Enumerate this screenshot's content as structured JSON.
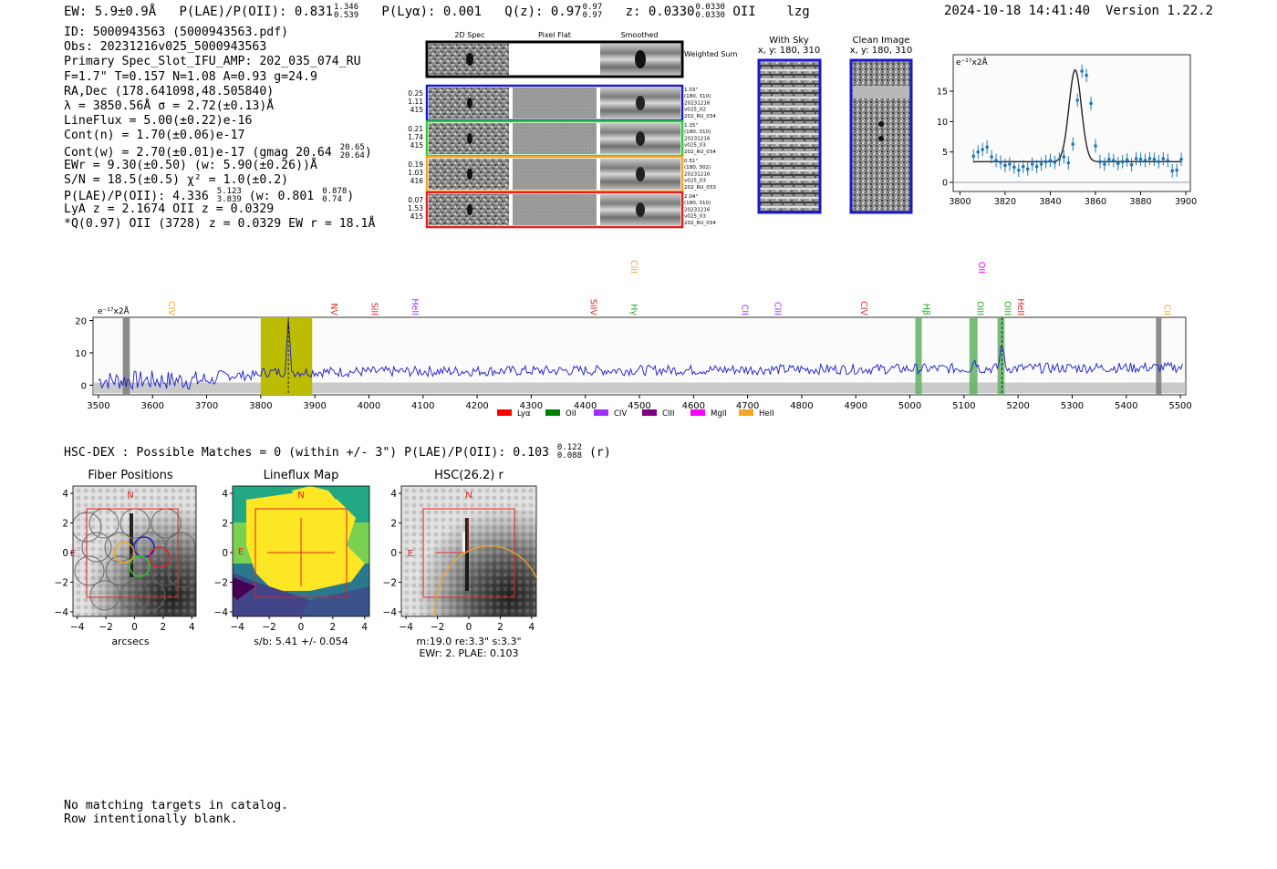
{
  "header": {
    "ew_label": "EW: 5.9±0.9Å",
    "ew_hi": "",
    "plae_label": "P(LAE)/P(OII): 0.831",
    "plae_hi": "1.346",
    "plae_lo": "0.539",
    "plya_label": "P(Lyα): 0.001",
    "qz_label": "Q(z): 0.97",
    "qz_hi": "0.97",
    "qz_lo": "0.97",
    "z_label": "z: 0.0330",
    "z_hi": "0.0330",
    "z_lo": "0.0330",
    "z_line": "OII",
    "tag": "lzg",
    "timestamp": "2024-10-18 14:41:40",
    "version": "Version 1.22.2"
  },
  "info": {
    "id": "ID: 5000943563 (5000943563.pdf)",
    "obs": "Obs: 20231216v025_5000943563",
    "primary": "Primary Spec_Slot_IFU_AMP: 202_035_074_RU",
    "fit": "F=1.7\"  T=0.157  N=1.08  A=0.93  g=24.9",
    "radec": "RA,Dec (178.641098,48.505840)",
    "lambda": "λ = 3850.56Å  σ = 2.72(±0.13)Å",
    "lineflux": "LineFlux = 5.00(±0.22)e-16",
    "contn": "Cont(n) = 1.70(±0.06)e-17",
    "contw_prefix": "Cont(w) = 2.70(±0.01)e-17 (gmag 20.64",
    "contw_hi": "20.65",
    "contw_lo": "20.64",
    "contw_suffix": ")",
    "ewr": "EWr = 9.30(±0.50) (w: 5.90(±0.26))Å",
    "sn": "S/N = 18.5(±0.5)  χ² = 1.0(±0.2)",
    "plae_prefix": "P(LAE)/P(OII): 4.336",
    "plae_hi": "5.123",
    "plae_lo": "3.839",
    "plae_mid": " (w: 0.801",
    "plae_w_hi": "0.878",
    "plae_w_lo": "0.74",
    "plae_suffix": ")",
    "lya": "LyA z = 2.1674  OII z = 0.0329",
    "q": "*Q(0.97) OII (3728) z = 0.0329  EW r = 18.1Å"
  },
  "cutouts": {
    "headers": [
      "2D Spec",
      "Pixel Flat",
      "Smoothed"
    ],
    "weighted_sum": "Weighted Sum",
    "rows": [
      {
        "vals": [
          "0.25",
          "1.11",
          "415"
        ],
        "meta": [
          "1.03\"",
          "(180, 310)",
          "20231216",
          "v025_02",
          "202_RU_034"
        ],
        "color": "#1a1acc"
      },
      {
        "vals": [
          "0.21",
          "1.74",
          "415"
        ],
        "meta": [
          "1.15\"",
          "(180, 310)",
          "20231216",
          "v025_03",
          "202_RU_034"
        ],
        "color": "#2ecc2e"
      },
      {
        "vals": [
          "0.19",
          "1.03",
          "416"
        ],
        "meta": [
          "0.51\"",
          "(180, 302)",
          "20231216",
          "v025_03",
          "202_RU_033"
        ],
        "color": "#f5a623"
      },
      {
        "vals": [
          "0.07",
          "1.53",
          "415"
        ],
        "meta": [
          "2.04\"",
          "(180, 310)",
          "20231216",
          "v025_03",
          "202_RU_034"
        ],
        "color": "#e52020"
      }
    ]
  },
  "sky_panels": {
    "with_sky": "With Sky",
    "clean": "Clean Image",
    "xy": "x, y: 180, 310"
  },
  "zoom_chart": {
    "type": "line",
    "yunit": "e⁻¹⁷x2Å",
    "x_ticks": [
      3800,
      3820,
      3840,
      3860,
      3880,
      3900
    ],
    "y_ticks": [
      0,
      5,
      10,
      15
    ],
    "xlim": [
      3797,
      3902
    ],
    "ylim": [
      -1.5,
      21
    ],
    "points_x": [
      3806,
      3808,
      3810,
      3812,
      3814,
      3816,
      3818,
      3820,
      3822,
      3824,
      3826,
      3828,
      3830,
      3832,
      3834,
      3836,
      3838,
      3840,
      3842,
      3844,
      3846,
      3848,
      3850,
      3852,
      3854,
      3856,
      3858,
      3860,
      3862,
      3864,
      3866,
      3868,
      3870,
      3872,
      3874,
      3876,
      3878,
      3880,
      3882,
      3884,
      3886,
      3888,
      3890,
      3892,
      3894,
      3896,
      3898
    ],
    "points_y": [
      4.3,
      5.0,
      5.4,
      5.8,
      4.2,
      3.6,
      3.3,
      2.8,
      3.0,
      2.5,
      2.0,
      2.6,
      2.2,
      3.0,
      2.6,
      3.0,
      3.4,
      3.6,
      3.3,
      3.8,
      4.2,
      3.2,
      6.3,
      13.5,
      18.3,
      17.6,
      13.0,
      6.0,
      3.4,
      3.0,
      3.8,
      3.6,
      3.1,
      3.4,
      3.7,
      2.9,
      3.9,
      3.8,
      3.6,
      3.9,
      3.8,
      3.4,
      3.9,
      3.6,
      1.9,
      2.0,
      3.8
    ],
    "model": {
      "center": 3851,
      "sigma": 2.72,
      "amp": 15.1,
      "cont": 3.4
    }
  },
  "spectrum_chart": {
    "type": "line",
    "yunit": "e⁻¹⁷x2Å",
    "x_ticks": [
      3500,
      3600,
      3700,
      3800,
      3900,
      4000,
      4100,
      4200,
      4300,
      4400,
      4500,
      4600,
      4700,
      4800,
      4900,
      5000,
      5100,
      5200,
      5300,
      5400,
      5500
    ],
    "y_ticks": [
      0,
      10,
      20
    ],
    "xlim": [
      3490,
      5510
    ],
    "ylim": [
      -3,
      21
    ],
    "line_labels": [
      {
        "label": "CIV",
        "x": 3625,
        "color": "#f5a623",
        "tier": 0
      },
      {
        "label": "NV",
        "x": 3925,
        "color": "#e52020",
        "tier": 0
      },
      {
        "label": "SiII",
        "x": 4000,
        "color": "#e52020",
        "tier": 0
      },
      {
        "label": "HeII",
        "x": 4075,
        "color": "#9b30ff",
        "tier": 0
      },
      {
        "label": "SiIV",
        "x": 4405,
        "color": "#e52020",
        "tier": 0
      },
      {
        "label": "CIII",
        "x": 4480,
        "color": "#f5a623",
        "tier": 1
      },
      {
        "label": "Hγ",
        "x": 4480,
        "color": "#22aa22",
        "tier": 0
      },
      {
        "label": "CII",
        "x": 4685,
        "color": "#9b30ff",
        "tier": 0
      },
      {
        "label": "CIII",
        "x": 4745,
        "color": "#9b30ff",
        "tier": 0
      },
      {
        "label": "CIV",
        "x": 4905,
        "color": "#e52020",
        "tier": 0
      },
      {
        "label": "Hβ",
        "x": 5020,
        "color": "#22aa22",
        "tier": 0
      },
      {
        "label": "OII",
        "x": 5122,
        "color": "#ff00ff",
        "tier": 1
      },
      {
        "label": "OIII",
        "x": 5120,
        "color": "#22aa22",
        "tier": 0
      },
      {
        "label": "OIII",
        "x": 5170,
        "color": "#22aa22",
        "tier": 0
      },
      {
        "label": "HeII",
        "x": 5195,
        "color": "#e52020",
        "tier": 0
      },
      {
        "label": "CII",
        "x": 5465,
        "color": "#f5a623",
        "tier": 0
      }
    ],
    "legend": [
      {
        "label": "Lyα",
        "color": "#ff0000"
      },
      {
        "label": "OII",
        "color": "#008000"
      },
      {
        "label": "CIV",
        "color": "#9b30ff"
      },
      {
        "label": "CIII",
        "color": "#800080"
      },
      {
        "label": "MgII",
        "color": "#ff00ff"
      },
      {
        "label": "HeII",
        "color": "#f5a623"
      }
    ]
  },
  "hsc": {
    "prefix": "HSC-DEX : Possible Matches = 0 (within +/- 3\")  P(LAE)/P(OII): 0.103",
    "hi": "0.122",
    "lo": "0.088",
    "suffix": " (r)"
  },
  "bottom_panels": {
    "fiber_title": "Fiber Positions",
    "fiber_xlabel": "arcsecs",
    "lineflux_title": "Lineflux Map",
    "lineflux_xlabel": "s/b: 5.41 +/- 0.054",
    "hsc_title": "HSC(26.2) r",
    "hsc_caption1": "m:19.0  re:3.3\"  s:3.3\"",
    "hsc_caption2": "EWr: 2. PLAE: 0.103",
    "north": "N",
    "east": "E",
    "ticks": [
      "4",
      "2",
      "0",
      "−2",
      "−4"
    ],
    "xticks": [
      "−4",
      "−2",
      "0",
      "2",
      "4"
    ]
  },
  "footer": {
    "line1": "No matching targets in catalog.",
    "line2": "Row intentionally blank."
  }
}
